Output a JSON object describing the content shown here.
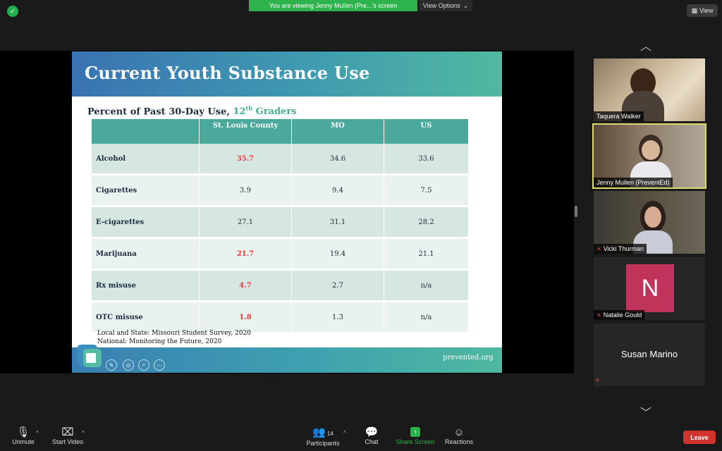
{
  "banner": {
    "text": "You are viewing Jenny Mullen (Pre...'s screen",
    "view_options": "View Options"
  },
  "view_button": "View",
  "slide": {
    "title": "Current Youth Substance Use",
    "subtitle_prefix": "Percent of Past 30-Day Use, ",
    "subtitle_grade_num": "12",
    "subtitle_grade_sup": "th",
    "subtitle_grade_rest": " Graders",
    "columns": [
      "",
      "St. Louis County",
      "MO",
      "US"
    ],
    "rows": [
      {
        "substance": "Alcohol",
        "stl": "35.7",
        "mo": "34.6",
        "us": "33.6",
        "highlight": true
      },
      {
        "substance": "Cigarettes",
        "stl": "3.9",
        "mo": "9.4",
        "us": "7.5",
        "highlight": false
      },
      {
        "substance": "E-cigarettes",
        "stl": "27.1",
        "mo": "31.1",
        "us": "28.2",
        "highlight": false
      },
      {
        "substance": "Marijuana",
        "stl": "21.7",
        "mo": "19.4",
        "us": "21.1",
        "highlight": true
      },
      {
        "substance": "Rx misuse",
        "stl": "4.7",
        "mo": "2.7",
        "us": "n/a",
        "highlight": true
      },
      {
        "substance": "OTC misuse",
        "stl": "1.8",
        "mo": "1.3",
        "us": "n/a",
        "highlight": true
      }
    ],
    "source_line1": "Local and State: Missouri Student Survey, 2020",
    "source_line2": "National: Monitoring the Future, 2020",
    "footer_url": "prevented.org"
  },
  "participants": [
    {
      "name": "Taquera Walker",
      "muted": false,
      "active": false
    },
    {
      "name": "Jenny Mullen (PreventEd)",
      "muted": false,
      "active": true
    },
    {
      "name": "Vicki Thurman",
      "muted": true,
      "active": false
    },
    {
      "name": "Natalie Gould",
      "muted": true,
      "active": false,
      "initial": "N"
    },
    {
      "name": "Susan Marino",
      "muted": true,
      "active": false
    }
  ],
  "toolbar": {
    "unmute": "Unmute",
    "start_video": "Start Video",
    "participants": "Participants",
    "participant_count": "14",
    "chat": "Chat",
    "share_screen": "Share Screen",
    "reactions": "Reactions",
    "leave": "Leave"
  },
  "colors": {
    "banner_green": "#2eb24c",
    "leave_red": "#d0342c",
    "share_green": "#2eb24c",
    "active_border": "#d9dc6a",
    "highlight_red": "#e53b3b",
    "table_header": "#4aa99a"
  }
}
